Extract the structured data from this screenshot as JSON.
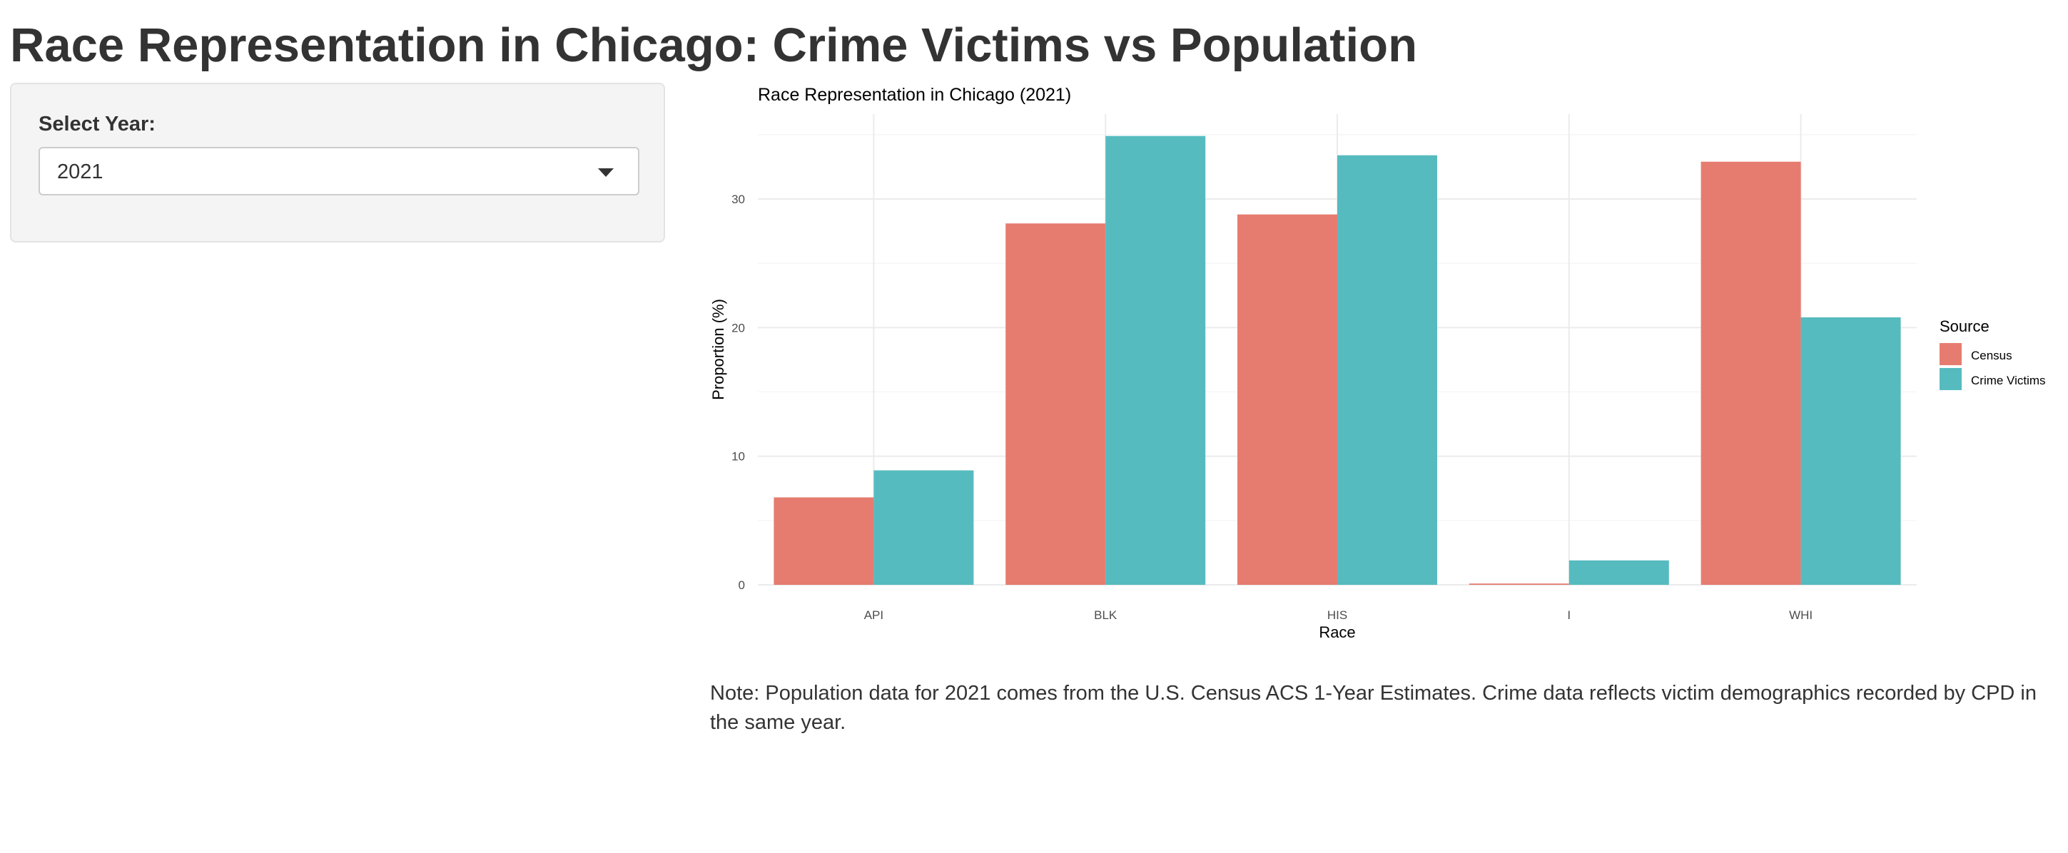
{
  "app": {
    "title": "Race Representation in Chicago: Crime Victims vs Population"
  },
  "sidebar": {
    "year_label": "Select Year:",
    "year_selected": "2021"
  },
  "note": {
    "text": "Note: Population data for 2021 comes from the U.S. Census ACS 1-Year Estimates. Crime data reflects victim demographics recorded by CPD in the same year."
  },
  "colors": {
    "census": "#E67C70",
    "crime_victims": "#56BBBF",
    "grid_major": "#EBEBEB",
    "grid_minor": "#F4F4F4",
    "text": "#333333"
  },
  "chart_data": {
    "type": "bar",
    "title": "Race Representation in Chicago (2021)",
    "xlabel": "Race",
    "ylabel": "Proportion (%)",
    "categories": [
      "API",
      "BLK",
      "HIS",
      "I",
      "WHI"
    ],
    "series": [
      {
        "name": "Census",
        "color": "#E67C70",
        "values": [
          6.8,
          28.1,
          28.8,
          0.1,
          32.9
        ]
      },
      {
        "name": "Crime Victims",
        "color": "#56BBBF",
        "values": [
          8.9,
          34.9,
          33.4,
          1.9,
          20.8
        ]
      }
    ],
    "yticks": [
      0,
      10,
      20,
      30
    ],
    "ylim": [
      0,
      36.6
    ],
    "legend": {
      "title": "Source",
      "position": "right"
    },
    "grid": true
  }
}
